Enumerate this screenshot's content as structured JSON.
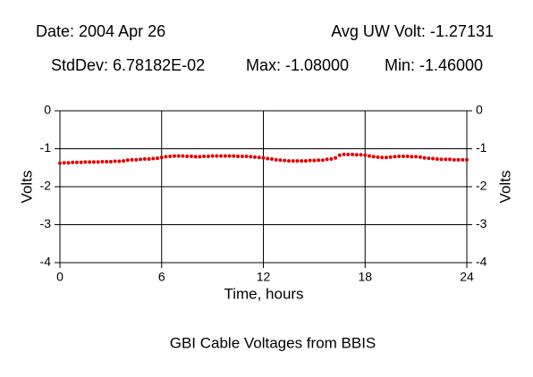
{
  "chart_data": {
    "type": "scatter",
    "title": "GBI Cable Voltages from BBIS",
    "annotations": [
      "Date: 2004 Apr 26",
      "Avg UW Volt: -1.27131",
      "StdDev: 6.78182E-02",
      "Max: -1.08000",
      "Min: -1.46000"
    ],
    "xlabel": "Time, hours",
    "ylabel": "Volts",
    "xlim": [
      0,
      24
    ],
    "xticks": [
      0,
      6,
      12,
      18,
      24
    ],
    "ylim": [
      -4,
      0
    ],
    "yticks": [
      0,
      -1,
      -2,
      -3,
      -4
    ],
    "grid": true,
    "series": [
      {
        "color": "#e00000",
        "x": [
          0,
          0.25,
          0.5,
          0.75,
          1,
          1.25,
          1.5,
          1.75,
          2,
          2.25,
          2.5,
          2.75,
          3,
          3.25,
          3.5,
          3.75,
          4,
          4.25,
          4.5,
          4.75,
          5,
          5.25,
          5.5,
          5.75,
          6,
          6.25,
          6.5,
          6.75,
          7,
          7.25,
          7.5,
          7.75,
          8,
          8.25,
          8.5,
          8.75,
          9,
          9.25,
          9.5,
          9.75,
          10,
          10.25,
          10.5,
          10.75,
          11,
          11.25,
          11.5,
          11.75,
          12,
          12.25,
          12.5,
          12.75,
          13,
          13.25,
          13.5,
          13.75,
          14,
          14.25,
          14.5,
          14.75,
          15,
          15.25,
          15.5,
          15.75,
          16,
          16.25,
          16.5,
          16.75,
          17,
          17.25,
          17.5,
          17.75,
          18,
          18.25,
          18.5,
          18.75,
          19,
          19.25,
          19.5,
          19.75,
          20,
          20.25,
          20.5,
          20.75,
          21,
          21.25,
          21.5,
          21.75,
          22,
          22.25,
          22.5,
          22.75,
          23,
          23.25,
          23.5,
          23.75,
          24
        ],
        "values": [
          -1.38,
          -1.37,
          -1.37,
          -1.36,
          -1.36,
          -1.36,
          -1.35,
          -1.35,
          -1.35,
          -1.35,
          -1.34,
          -1.34,
          -1.34,
          -1.33,
          -1.33,
          -1.32,
          -1.3,
          -1.29,
          -1.29,
          -1.28,
          -1.27,
          -1.27,
          -1.26,
          -1.25,
          -1.23,
          -1.21,
          -1.2,
          -1.19,
          -1.19,
          -1.19,
          -1.2,
          -1.2,
          -1.21,
          -1.21,
          -1.2,
          -1.2,
          -1.19,
          -1.19,
          -1.19,
          -1.19,
          -1.19,
          -1.19,
          -1.2,
          -1.2,
          -1.2,
          -1.21,
          -1.22,
          -1.23,
          -1.24,
          -1.26,
          -1.27,
          -1.29,
          -1.3,
          -1.31,
          -1.32,
          -1.32,
          -1.32,
          -1.32,
          -1.32,
          -1.31,
          -1.31,
          -1.3,
          -1.3,
          -1.28,
          -1.27,
          -1.24,
          -1.17,
          -1.15,
          -1.15,
          -1.15,
          -1.16,
          -1.16,
          -1.17,
          -1.19,
          -1.21,
          -1.22,
          -1.23,
          -1.23,
          -1.22,
          -1.21,
          -1.2,
          -1.2,
          -1.2,
          -1.21,
          -1.21,
          -1.22,
          -1.24,
          -1.25,
          -1.26,
          -1.27,
          -1.28,
          -1.28,
          -1.28,
          -1.29,
          -1.29,
          -1.29,
          -1.29
        ]
      }
    ]
  }
}
